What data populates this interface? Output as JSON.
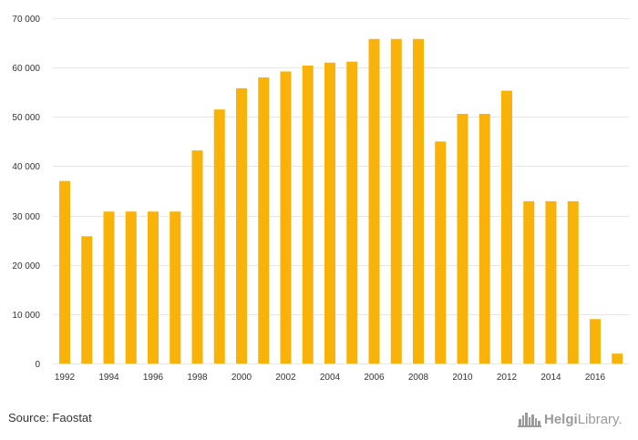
{
  "chart_data": {
    "type": "bar",
    "categories": [
      "1992",
      "1993",
      "1994",
      "1995",
      "1996",
      "1997",
      "1998",
      "1999",
      "2000",
      "2001",
      "2002",
      "2003",
      "2004",
      "2005",
      "2006",
      "2007",
      "2008",
      "2009",
      "2010",
      "2011",
      "2012",
      "2013",
      "2014",
      "2015",
      "2016",
      "2017"
    ],
    "values": [
      37000,
      25800,
      30800,
      30800,
      30800,
      30800,
      43200,
      51500,
      55800,
      58000,
      59200,
      60400,
      61000,
      61200,
      65800,
      65800,
      65800,
      45000,
      50600,
      50600,
      55300,
      32900,
      32900,
      32900,
      9000,
      2000
    ],
    "x_tick_labels": [
      "1992",
      "1994",
      "1996",
      "1998",
      "2000",
      "2002",
      "2004",
      "2006",
      "2008",
      "2010",
      "2012",
      "2014",
      "2016"
    ],
    "y_ticks": [
      0,
      10000,
      20000,
      30000,
      40000,
      50000,
      60000,
      70000
    ],
    "y_tick_labels": [
      "0",
      "10 000",
      "20 000",
      "30 000",
      "40 000",
      "50 000",
      "60 000",
      "70 000"
    ],
    "ylim": [
      0,
      70000
    ],
    "grid": true,
    "bar_color": "#F9B208",
    "title": "",
    "xlabel": "",
    "ylabel": ""
  },
  "footer": {
    "source": "Source: Faostat",
    "brand_prefix": "Helgi",
    "brand_suffix": "Library.",
    "brand_icon": "skyline-icon"
  }
}
